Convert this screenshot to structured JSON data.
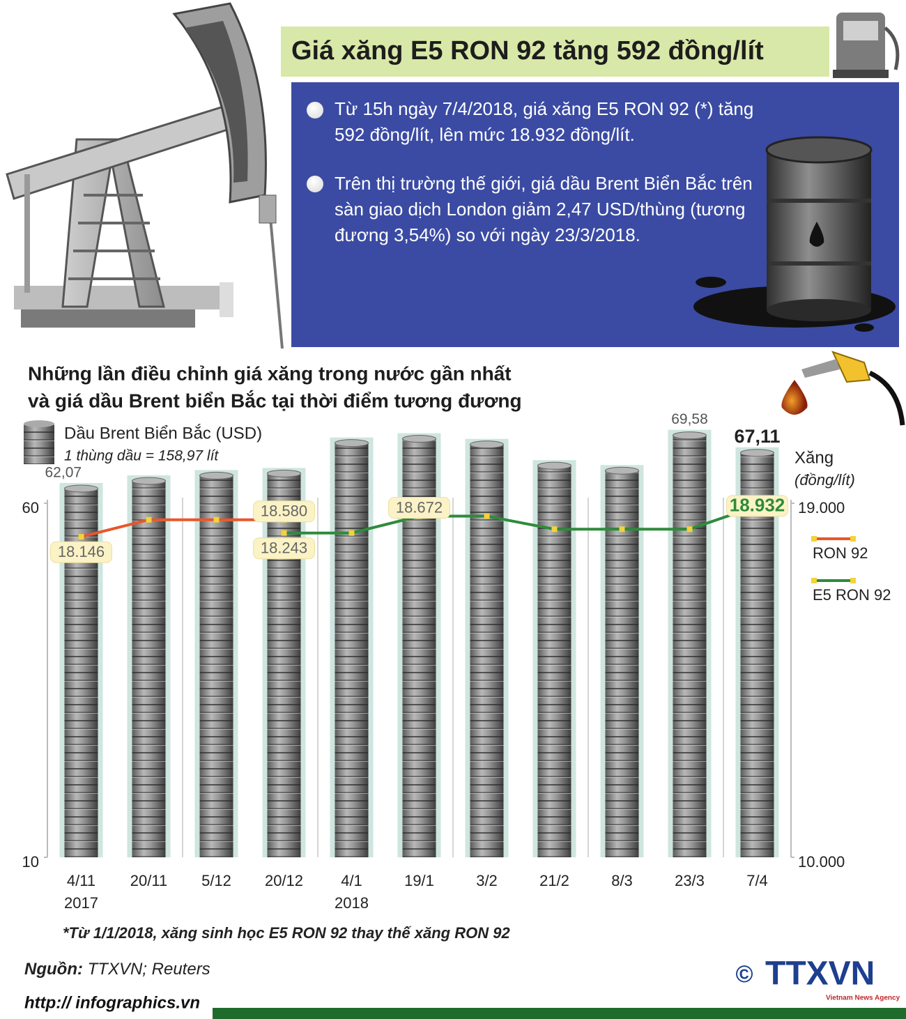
{
  "header": {
    "title": "Giá xăng E5 RON 92 tăng 592 đồng/lít"
  },
  "bullets": [
    "Từ 15h ngày 7/4/2018, giá xăng E5 RON 92 (*) tăng 592 đồng/lít, lên mức 18.932 đồng/lít.",
    "Trên thị trường thế giới, giá dầu Brent Biển Bắc trên sàn giao dịch London giảm 2,47 USD/thùng (tương đương 3,54%) so với ngày 23/3/2018."
  ],
  "chart_data": {
    "type": "combo",
    "title": "Những lần điều chỉnh giá xăng trong nước gần nhất",
    "subtitle": "và giá dầu Brent biển Bắc tại thời điểm tương đương",
    "categories": [
      "4/11",
      "20/11",
      "5/12",
      "20/12",
      "4/1",
      "19/1",
      "3/2",
      "21/2",
      "8/3",
      "23/3",
      "7/4"
    ],
    "year_labels": [
      "2017",
      null,
      null,
      null,
      "2018",
      null,
      null,
      null,
      null,
      null,
      null
    ],
    "series": [
      {
        "name": "Dầu Brent Biển Bắc (USD)",
        "note": "1 thùng dầu = 158,97 lít",
        "type": "bar",
        "color": "#8a8a8a",
        "values": [
          62.07,
          63.15,
          63.9,
          64.2,
          68.5,
          69.1,
          68.3,
          65.3,
          64.6,
          69.58,
          67.11
        ],
        "value_labels": [
          "62,07",
          null,
          null,
          null,
          null,
          null,
          null,
          null,
          null,
          "69,58",
          "67,11"
        ]
      },
      {
        "name": "RON 92",
        "type": "line",
        "axis": "y2",
        "color": "#e8562a",
        "values": [
          18146,
          18580,
          18580,
          18580,
          null,
          null,
          null,
          null,
          null,
          null,
          null
        ],
        "value_labels": [
          "18.146",
          null,
          null,
          "18.580",
          null,
          null,
          null,
          null,
          null,
          null,
          null
        ]
      },
      {
        "name": "E5 RON 92",
        "type": "line",
        "axis": "y2",
        "color": "#2e8b3c",
        "values": [
          null,
          null,
          null,
          18243,
          18243,
          18672,
          18672,
          18340,
          18340,
          18340,
          18932
        ],
        "value_labels": [
          null,
          null,
          null,
          "18.243",
          null,
          "18.672",
          null,
          null,
          null,
          null,
          "18.932"
        ]
      }
    ],
    "ylim": [
      10,
      60
    ],
    "yticks": [
      10,
      60
    ],
    "y2lim": [
      10000,
      19000
    ],
    "y2ticks": [
      {
        "value": 10000,
        "label": "10.000"
      },
      {
        "value": 19000,
        "label": "19.000"
      }
    ],
    "y2_label": "Xăng",
    "y2_unit": "(đồng/lít)"
  },
  "footnote": "*Từ 1/1/2018, xăng sinh học E5 RON 92 thay thế xăng RON 92",
  "source": {
    "label": "Nguồn:",
    "text": "TTXVN; Reuters"
  },
  "url": "http:// infographics.vn",
  "logo": {
    "copyright": "©",
    "name": "TTXVN",
    "tagline": "Vietnam News Agency"
  }
}
